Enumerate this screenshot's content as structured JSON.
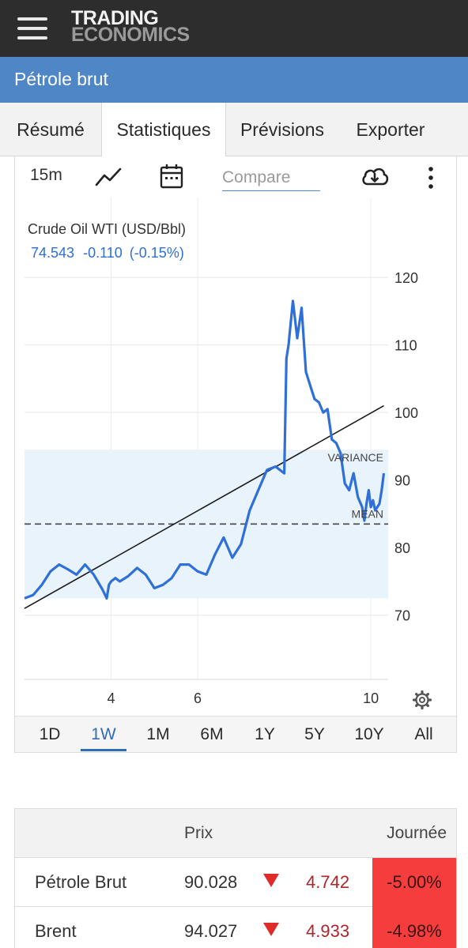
{
  "header": {
    "menu_icon": "hamburger-menu-icon",
    "logo_line1": "TRADING",
    "logo_line2": "ECONOMICS"
  },
  "page_title": "Pétrole brut",
  "tabs": [
    {
      "label": "Résumé",
      "active": false
    },
    {
      "label": "Statistiques",
      "active": true
    },
    {
      "label": "Prévisions",
      "active": false
    },
    {
      "label": "Exporter",
      "active": false
    }
  ],
  "toolbar": {
    "interval": "15m",
    "chart_type_icon": "line-chart-icon",
    "calendar_icon": "calendar-icon",
    "compare_placeholder": "Compare",
    "download_icon": "cloud-download-icon",
    "more_icon": "more-vert-icon"
  },
  "chart": {
    "series_label": "Crude Oil WTI (USD/Bbl)",
    "last_value": "74.543",
    "change": "-0.110",
    "change_pct": "(-0.15%)",
    "settings_icon": "gear-icon",
    "line_color": "#2f6fd8",
    "band_color": "#e9f3fb"
  },
  "chart_data": {
    "type": "line",
    "series": [
      {
        "name": "Crude Oil WTI (USD/Bbl)",
        "x": [
          2.0,
          2.2,
          2.4,
          2.6,
          2.8,
          3.0,
          3.2,
          3.4,
          3.6,
          3.8,
          3.9,
          3.95,
          4.0,
          4.1,
          4.2,
          4.4,
          4.6,
          4.8,
          5.0,
          5.2,
          5.4,
          5.6,
          5.8,
          6.0,
          6.2,
          6.4,
          6.6,
          6.8,
          7.0,
          7.2,
          7.4,
          7.6,
          7.8,
          8.0,
          8.05,
          8.1,
          8.2,
          8.3,
          8.4,
          8.5,
          8.6,
          8.7,
          8.8,
          8.9,
          9.0,
          9.1,
          9.2,
          9.3,
          9.4,
          9.5,
          9.6,
          9.7,
          9.8,
          9.85,
          9.9,
          9.95,
          10.0,
          10.05,
          10.1,
          10.15,
          10.2,
          10.25,
          10.3
        ],
        "y": [
          72.5,
          73.0,
          74.5,
          76.5,
          77.5,
          76.8,
          76.0,
          77.5,
          76.0,
          73.8,
          72.5,
          74.5,
          75.0,
          75.5,
          75.0,
          75.8,
          77.0,
          76.0,
          74.0,
          74.5,
          75.5,
          77.5,
          77.5,
          76.5,
          76.0,
          79.0,
          81.5,
          78.5,
          80.5,
          85.5,
          88.5,
          91.5,
          92.0,
          91.0,
          108.0,
          110.0,
          116.5,
          111.0,
          115.5,
          106.0,
          104.0,
          102.0,
          101.5,
          100.0,
          100.5,
          96.0,
          95.5,
          94.0,
          89.5,
          88.5,
          91.0,
          87.5,
          86.0,
          84.0,
          86.5,
          88.5,
          86.0,
          87.0,
          85.5,
          86.0,
          86.5,
          88.5,
          91.0
        ]
      }
    ],
    "x_ticks": [
      "4",
      "6",
      "10"
    ],
    "x_tick_values": [
      4,
      6,
      10
    ],
    "y_ticks": [
      120,
      110,
      100,
      90,
      80,
      70
    ],
    "xlim": [
      2.0,
      10.4
    ],
    "ylim": [
      60.5,
      122
    ],
    "mean": 83.5,
    "variance_band": [
      72.5,
      94.5
    ],
    "trendline": [
      [
        2.0,
        71.0
      ],
      [
        10.3,
        101.0
      ]
    ],
    "annotations": [
      "VARIANCE",
      "MEAN"
    ],
    "grid": true
  },
  "ranges": [
    {
      "label": "1D",
      "active": false
    },
    {
      "label": "1W",
      "active": true
    },
    {
      "label": "1M",
      "active": false
    },
    {
      "label": "6M",
      "active": false
    },
    {
      "label": "1Y",
      "active": false
    },
    {
      "label": "5Y",
      "active": false
    },
    {
      "label": "10Y",
      "active": false
    },
    {
      "label": "All",
      "active": false
    }
  ],
  "table": {
    "headers": {
      "price": "Prix",
      "day": "Journée"
    },
    "rows": [
      {
        "name": "Pétrole Brut",
        "price": "90.028",
        "change": "4.742",
        "pct": "-5.00%",
        "direction_icon": "down-arrow-icon"
      },
      {
        "name": "Brent",
        "price": "94.027",
        "change": "4.933",
        "pct": "-4.98%",
        "direction_icon": "down-arrow-icon"
      }
    ]
  }
}
